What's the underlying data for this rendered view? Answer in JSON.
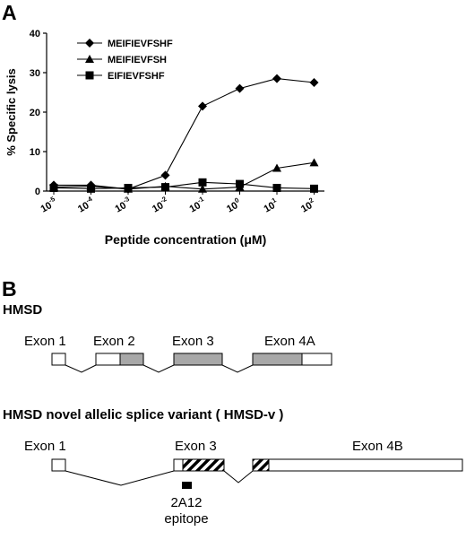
{
  "panel_a": {
    "label": "A",
    "chart_data": {
      "type": "line",
      "xlabel": "Peptide concentration (μM)",
      "ylabel": "% Specific  lysis",
      "ylim": [
        0,
        40
      ],
      "yticks": [
        "0",
        "10",
        "20",
        "30",
        "40"
      ],
      "categories": [
        {
          "base": "10",
          "exp": "-5"
        },
        {
          "base": "10",
          "exp": "-4"
        },
        {
          "base": "10",
          "exp": "-3"
        },
        {
          "base": "10",
          "exp": "-2"
        },
        {
          "base": "10",
          "exp": "-1"
        },
        {
          "base": "10",
          "exp": "0"
        },
        {
          "base": "10",
          "exp": "1"
        },
        {
          "base": "10",
          "exp": "2"
        }
      ],
      "legend_position": "top-left",
      "series": [
        {
          "name": "MEIFIEVFSHF",
          "marker": "diamond",
          "values": [
            1.5,
            1.5,
            0.5,
            4,
            21.5,
            26,
            28.5,
            27.5
          ]
        },
        {
          "name": "MEIFIEVFSH",
          "marker": "triangle",
          "values": [
            1.0,
            1.2,
            0.5,
            1.2,
            0.5,
            1.0,
            5.8,
            7.2
          ]
        },
        {
          "name": "EIFIEVFSHF",
          "marker": "square",
          "values": [
            0.8,
            0.6,
            0.8,
            1.0,
            2.2,
            1.8,
            0.8,
            0.6
          ]
        }
      ]
    }
  },
  "panel_b": {
    "label": "B",
    "hmsd": {
      "title": "HMSD",
      "exons": [
        "Exon 1",
        "Exon 2",
        "Exon 3",
        "Exon 4A"
      ]
    },
    "variant": {
      "title": "HMSD  novel allelic splice variant ( HMSD-v )",
      "exons": [
        "Exon 1",
        "Exon 3",
        "Exon 4B"
      ],
      "epitope": [
        "2A12",
        "epitope"
      ]
    },
    "colors": {
      "coding": "#a8a8a8",
      "noncoding": "#ffffff",
      "stroke": "#000000"
    }
  }
}
